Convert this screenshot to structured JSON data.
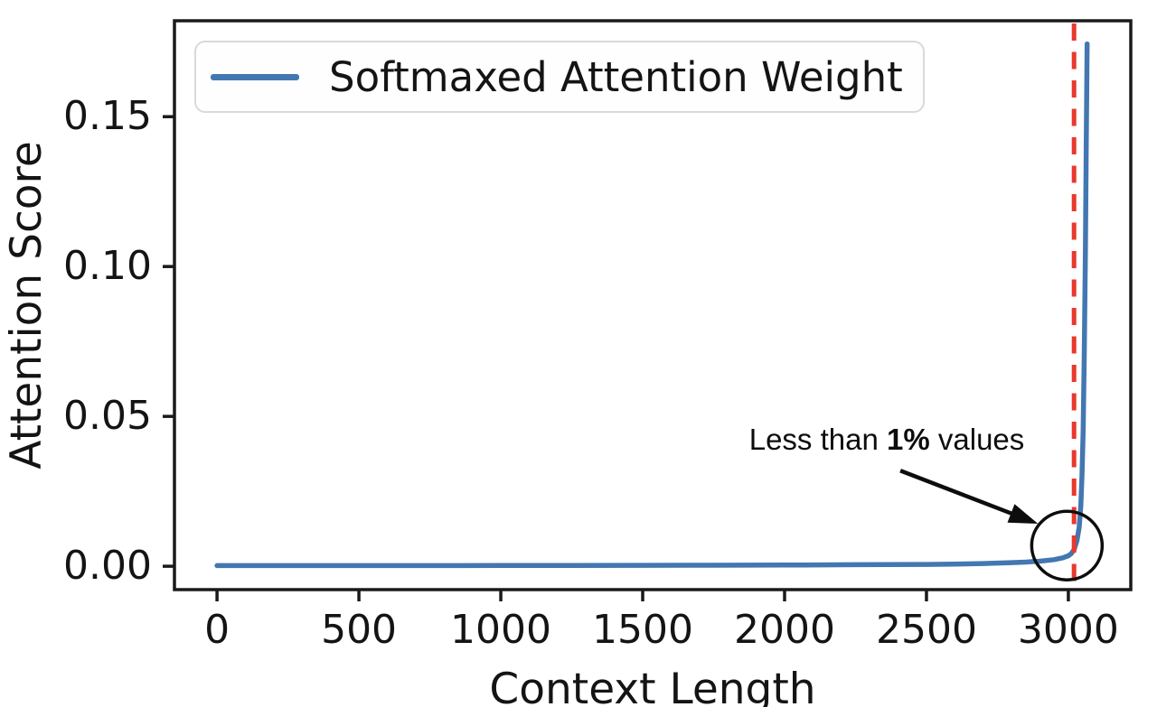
{
  "chart_data": {
    "type": "line",
    "title": "",
    "xlabel": "Context Length",
    "ylabel": "Attention Score",
    "xlim": [
      -150,
      3220
    ],
    "ylim": [
      -0.0078,
      0.182
    ],
    "grid": false,
    "x_ticks": {
      "labels": [
        "0",
        "500",
        "1000",
        "1500",
        "2000",
        "2500",
        "3000"
      ],
      "values": [
        0,
        500,
        1000,
        1500,
        2000,
        2500,
        3000
      ]
    },
    "y_ticks": {
      "labels": [
        "0.00",
        "0.05",
        "0.10",
        "0.15"
      ],
      "values": [
        0,
        0.05,
        0.1,
        0.15
      ]
    },
    "legend": {
      "position": "upper left",
      "entries": [
        {
          "label": "Softmaxed Attention Weight",
          "color": "#4377b1"
        }
      ]
    },
    "series": [
      {
        "name": "Softmaxed Attention Weight",
        "color": "#4377b1",
        "line_width": 5.5,
        "points": [
          [
            0,
            0.0002
          ],
          [
            250,
            0.0002
          ],
          [
            500,
            0.0002
          ],
          [
            750,
            0.00022
          ],
          [
            1000,
            0.00024
          ],
          [
            1250,
            0.00026
          ],
          [
            1500,
            0.0003
          ],
          [
            1750,
            0.00034
          ],
          [
            2000,
            0.0004
          ],
          [
            2250,
            0.0005
          ],
          [
            2500,
            0.0006
          ],
          [
            2600,
            0.0007
          ],
          [
            2700,
            0.0009
          ],
          [
            2800,
            0.0012
          ],
          [
            2850,
            0.0014
          ],
          [
            2900,
            0.0017
          ],
          [
            2950,
            0.0022
          ],
          [
            2980,
            0.0028
          ],
          [
            3000,
            0.0035
          ],
          [
            3010,
            0.0042
          ],
          [
            3020,
            0.0055
          ],
          [
            3030,
            0.0085
          ],
          [
            3038,
            0.013
          ],
          [
            3044,
            0.02
          ],
          [
            3048,
            0.03
          ],
          [
            3052,
            0.045
          ],
          [
            3056,
            0.07
          ],
          [
            3060,
            0.105
          ],
          [
            3063,
            0.14
          ],
          [
            3065,
            0.16
          ],
          [
            3066,
            0.1743
          ]
        ]
      }
    ],
    "vline": {
      "x": 3020,
      "color": "#e8392d",
      "style": "dashed",
      "width": 5
    },
    "annotation": {
      "text_prefix": "Less than ",
      "text_bold": "1%",
      "text_suffix": " values",
      "text_anchor_data": [
        2360,
        0.0422
      ],
      "arrow_tail_data": [
        2408,
        0.0319
      ],
      "arrow_tip_data": [
        2893,
        0.0142
      ],
      "circle_center_data": [
        2995,
        0.0069
      ],
      "circle_radius_px": [
        39,
        38
      ],
      "color": "#0d0d0d"
    },
    "axis_color": "#1a1a1a"
  }
}
